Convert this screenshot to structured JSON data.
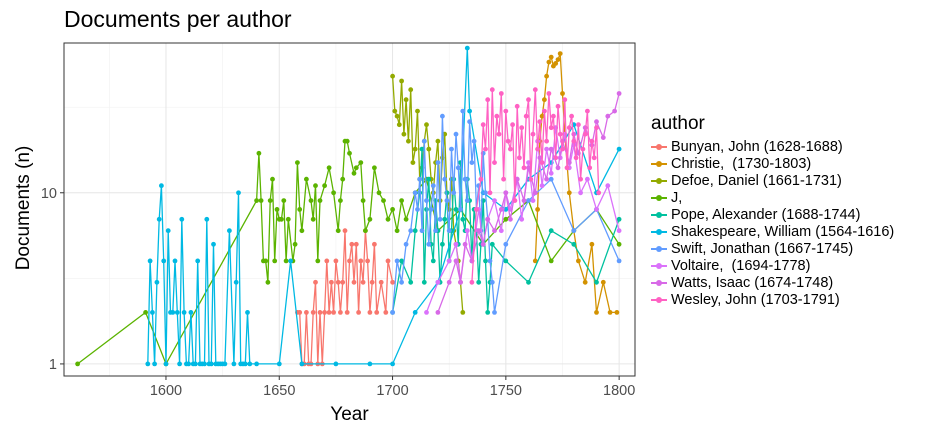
{
  "chart_data": {
    "type": "line",
    "title": "Documents per author",
    "xlabel": "Year",
    "ylabel": "Documents (n)",
    "xlim": [
      1555,
      1807
    ],
    "ylim": [
      0.85,
      75
    ],
    "y_scale": "log10",
    "x_ticks": [
      1600,
      1650,
      1700,
      1750,
      1800
    ],
    "y_ticks": [
      1,
      10
    ],
    "grid": true,
    "legend": {
      "title": "author",
      "position": "right"
    },
    "series": [
      {
        "name": "Bunyan, John (1628-1688)",
        "color": "#F8766D",
        "x": [
          1658,
          1659,
          1660,
          1661,
          1662,
          1663,
          1664,
          1665,
          1666,
          1667,
          1668,
          1669,
          1670,
          1671,
          1672,
          1673,
          1674,
          1675,
          1676,
          1677,
          1678,
          1679,
          1680,
          1681,
          1682,
          1683,
          1684,
          1685,
          1686,
          1687,
          1688,
          1689,
          1690,
          1691,
          1692,
          1693,
          1695,
          1697,
          1698,
          1700
        ],
        "y": [
          2,
          2,
          1,
          1,
          2,
          1,
          1,
          2,
          3,
          1,
          2,
          1,
          2,
          4,
          2,
          3,
          2,
          4,
          3,
          2,
          3,
          6,
          2,
          4,
          5,
          3,
          5,
          2,
          4,
          3,
          6,
          4,
          2,
          3,
          5,
          2,
          3,
          2,
          4,
          3
        ]
      },
      {
        "name": "Christie,  (1730-1803)",
        "color": "#D39200",
        "x": [
          1763,
          1764,
          1765,
          1766,
          1767,
          1768,
          1769,
          1770,
          1771,
          1772,
          1773,
          1774,
          1775,
          1776,
          1778,
          1780,
          1782,
          1785,
          1788,
          1790,
          1793,
          1796,
          1799
        ],
        "y": [
          4,
          8,
          20,
          28,
          35,
          48,
          58,
          62,
          55,
          57,
          60,
          65,
          38,
          22,
          10,
          6,
          4,
          3,
          5,
          2,
          3,
          2,
          2
        ]
      },
      {
        "name": "Defoe, Daniel (1661-1731)",
        "color": "#93AA00",
        "x": [
          1700,
          1701,
          1702,
          1703,
          1704,
          1705,
          1706,
          1707,
          1708,
          1709,
          1710,
          1711,
          1712,
          1713,
          1714,
          1715,
          1716,
          1717,
          1718,
          1719,
          1720,
          1721,
          1722,
          1723,
          1724,
          1725,
          1726,
          1727,
          1728,
          1729,
          1730,
          1731
        ],
        "y": [
          48,
          30,
          28,
          25,
          45,
          22,
          35,
          20,
          40,
          15,
          18,
          30,
          12,
          14,
          20,
          25,
          18,
          12,
          10,
          15,
          20,
          9,
          16,
          22,
          10,
          8,
          12,
          6,
          5,
          4,
          3,
          2
        ]
      },
      {
        "name": "J,",
        "color": "#5BB300",
        "x": [
          1561,
          1591,
          1600,
          1640,
          1641,
          1642,
          1643,
          1644,
          1645,
          1646,
          1647,
          1648,
          1649,
          1650,
          1651,
          1652,
          1653,
          1654,
          1656,
          1657,
          1658,
          1659,
          1660,
          1662,
          1664,
          1665,
          1666,
          1667,
          1668,
          1670,
          1672,
          1674,
          1676,
          1677,
          1678,
          1679,
          1680,
          1681,
          1683,
          1684,
          1686,
          1687,
          1688,
          1690,
          1692,
          1694,
          1696,
          1698,
          1700,
          1702,
          1704,
          1706,
          1710,
          1715,
          1720,
          1730,
          1740,
          1750,
          1760,
          1770,
          1780,
          1790,
          1800
        ],
        "y": [
          1,
          2,
          1,
          9,
          17,
          9,
          4,
          4,
          3,
          9,
          12,
          4,
          8,
          7,
          7,
          9,
          4,
          7,
          4,
          5,
          15,
          8,
          6,
          12,
          9,
          7,
          11,
          4,
          9,
          11,
          14,
          10,
          6,
          9,
          12,
          20,
          20,
          17,
          13,
          14,
          15,
          9,
          6,
          7,
          14,
          10,
          9,
          7,
          8,
          6,
          9,
          7,
          10,
          12,
          6,
          8,
          5,
          7,
          9,
          4,
          6,
          8,
          5
        ]
      },
      {
        "name": "Pope, Alexander (1688-1744)",
        "color": "#00C19F",
        "x": [
          1700,
          1704,
          1708,
          1710,
          1712,
          1713,
          1714,
          1715,
          1716,
          1717,
          1718,
          1719,
          1720,
          1721,
          1722,
          1723,
          1724,
          1725,
          1726,
          1727,
          1728,
          1729,
          1730,
          1731,
          1732,
          1733,
          1734,
          1735,
          1736,
          1737,
          1738,
          1739,
          1740,
          1741,
          1742,
          1743,
          1744,
          1750,
          1760,
          1770,
          1780,
          1790,
          1800
        ],
        "y": [
          2,
          4,
          3,
          6,
          10,
          18,
          3,
          8,
          12,
          5,
          4,
          9,
          6,
          3,
          5,
          7,
          10,
          4,
          6,
          12,
          8,
          5,
          15,
          7,
          6,
          12,
          9,
          4,
          8,
          6,
          3,
          5,
          9,
          4,
          2,
          3,
          5,
          4,
          3,
          6,
          5,
          3,
          7
        ]
      },
      {
        "name": "Shakespeare, William (1564-1616)",
        "color": "#00B9E3",
        "x": [
          1592,
          1593,
          1594,
          1595,
          1596,
          1597,
          1598,
          1599,
          1600,
          1601,
          1602,
          1603,
          1604,
          1605,
          1606,
          1607,
          1608,
          1609,
          1610,
          1611,
          1612,
          1613,
          1614,
          1615,
          1616,
          1617,
          1618,
          1619,
          1620,
          1621,
          1622,
          1623,
          1624,
          1625,
          1626,
          1628,
          1630,
          1631,
          1632,
          1633,
          1634,
          1635,
          1636,
          1637,
          1640,
          1650,
          1655,
          1660,
          1675,
          1690,
          1700,
          1710,
          1720,
          1730,
          1733,
          1734,
          1740,
          1750,
          1760,
          1770,
          1780,
          1790,
          1800
        ],
        "y": [
          1,
          4,
          2,
          1,
          3,
          7,
          11,
          4,
          1,
          6,
          2,
          2,
          4,
          2,
          1,
          7,
          2,
          1,
          1,
          2,
          1,
          1,
          4,
          1,
          1,
          1,
          7,
          1,
          1,
          5,
          1,
          1,
          1,
          1,
          1,
          6,
          1,
          3,
          10,
          1,
          1,
          1,
          2,
          1,
          1,
          1,
          4,
          1,
          1,
          1,
          1,
          2,
          3,
          8,
          70,
          30,
          10,
          8,
          12,
          15,
          25,
          10,
          18
        ]
      },
      {
        "name": "Swift, Jonathan (1667-1745)",
        "color": "#619CFF",
        "x": [
          1700,
          1702,
          1704,
          1706,
          1708,
          1710,
          1711,
          1712,
          1713,
          1714,
          1715,
          1716,
          1717,
          1718,
          1719,
          1720,
          1721,
          1722,
          1723,
          1724,
          1725,
          1726,
          1727,
          1728,
          1729,
          1730,
          1731,
          1732,
          1733,
          1734,
          1735,
          1736,
          1737,
          1738,
          1739,
          1740,
          1741,
          1742,
          1743,
          1744,
          1745,
          1750,
          1760,
          1770,
          1780,
          1790,
          1800
        ],
        "y": [
          2,
          4,
          3,
          5,
          6,
          10,
          8,
          12,
          6,
          20,
          9,
          5,
          8,
          11,
          6,
          15,
          7,
          28,
          12,
          9,
          6,
          18,
          10,
          22,
          14,
          8,
          30,
          12,
          9,
          26,
          15,
          20,
          8,
          11,
          6,
          17,
          10,
          7,
          4,
          3,
          2,
          5,
          9,
          12,
          6,
          8,
          4
        ]
      },
      {
        "name": "Voltaire,  (1694-1778)",
        "color": "#DB72FB",
        "x": [
          1715,
          1720,
          1725,
          1728,
          1730,
          1733,
          1735,
          1738,
          1740,
          1742,
          1745,
          1748,
          1750,
          1752,
          1755,
          1757,
          1760,
          1762,
          1764,
          1766,
          1768,
          1770,
          1772,
          1774,
          1776,
          1778,
          1780,
          1783,
          1786,
          1790,
          1795,
          1800
        ],
        "y": [
          2,
          3,
          4,
          5,
          3,
          6,
          4,
          8,
          5,
          7,
          9,
          6,
          10,
          8,
          12,
          7,
          15,
          9,
          20,
          11,
          18,
          13,
          24,
          16,
          22,
          14,
          19,
          10,
          12,
          8,
          11,
          6
        ]
      },
      {
        "name": "Watts, Isaac (1674-1748)",
        "color": "#D869E7",
        "x": [
          1720,
          1725,
          1728,
          1730,
          1732,
          1735,
          1738,
          1740,
          1742,
          1745,
          1748,
          1750,
          1752,
          1755,
          1758,
          1760,
          1763,
          1765,
          1768,
          1770,
          1773,
          1775,
          1778,
          1780,
          1782,
          1785,
          1788,
          1790,
          1793,
          1795,
          1798,
          1800
        ],
        "y": [
          2,
          3,
          4,
          3,
          5,
          4,
          6,
          5,
          7,
          6,
          8,
          10,
          7,
          12,
          9,
          14,
          10,
          16,
          12,
          18,
          14,
          20,
          15,
          22,
          17,
          24,
          19,
          26,
          21,
          28,
          30,
          38
        ]
      },
      {
        "name": "Wesley, John (1703-1791)",
        "color": "#FF61C3",
        "x": [
          1735,
          1737,
          1739,
          1740,
          1741,
          1742,
          1743,
          1744,
          1745,
          1746,
          1747,
          1748,
          1749,
          1750,
          1751,
          1752,
          1753,
          1754,
          1755,
          1756,
          1757,
          1758,
          1759,
          1760,
          1761,
          1762,
          1763,
          1764,
          1765,
          1766,
          1767,
          1768,
          1769,
          1770,
          1771,
          1772,
          1773,
          1774,
          1775,
          1776,
          1777,
          1778,
          1779,
          1780,
          1781,
          1782,
          1783,
          1784,
          1785,
          1786,
          1787,
          1788,
          1789,
          1790,
          1791
        ],
        "y": [
          3,
          8,
          12,
          25,
          18,
          35,
          10,
          40,
          15,
          28,
          22,
          38,
          12,
          30,
          20,
          18,
          25,
          9,
          32,
          16,
          24,
          14,
          28,
          35,
          12,
          22,
          40,
          18,
          26,
          15,
          30,
          20,
          38,
          24,
          28,
          16,
          32,
          22,
          18,
          35,
          14,
          24,
          28,
          20,
          16,
          25,
          12,
          18,
          22,
          30,
          14,
          20,
          16,
          24,
          10
        ]
      }
    ]
  }
}
